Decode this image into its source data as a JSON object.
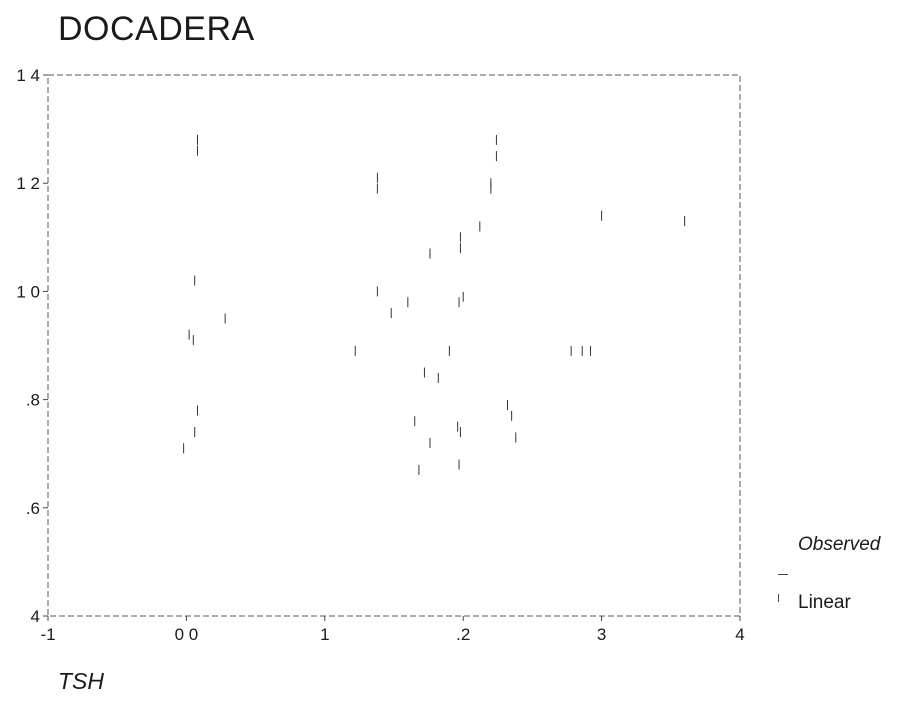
{
  "chart_data": {
    "type": "scatter",
    "title": "DOCADERA",
    "xlabel": "TSH",
    "ylabel": "",
    "xlim": [
      -1,
      4
    ],
    "ylim": [
      0.4,
      1.4
    ],
    "x_ticks": [
      "-1",
      "0 0",
      "1",
      ".2",
      "3",
      "4"
    ],
    "x_tick_values": [
      -1,
      0,
      1,
      2,
      3,
      4
    ],
    "y_ticks": [
      "1 4",
      "1 2",
      "1 0",
      ".8",
      ".6",
      "4"
    ],
    "y_tick_values": [
      1.4,
      1.2,
      1.0,
      0.8,
      0.6,
      0.4
    ],
    "grid": false,
    "legend_position": "right",
    "legend": [
      "Observed",
      "Linear"
    ],
    "series": [
      {
        "name": "Observed",
        "points": [
          [
            0.08,
            1.28
          ],
          [
            0.08,
            1.26
          ],
          [
            0.06,
            1.02
          ],
          [
            0.28,
            0.95
          ],
          [
            0.02,
            0.92
          ],
          [
            0.05,
            0.91
          ],
          [
            0.08,
            0.78
          ],
          [
            0.06,
            0.74
          ],
          [
            -0.02,
            0.71
          ],
          [
            1.22,
            0.89
          ],
          [
            1.38,
            1.21
          ],
          [
            1.38,
            1.19
          ],
          [
            1.38,
            1.0
          ],
          [
            1.48,
            0.96
          ],
          [
            1.6,
            0.98
          ],
          [
            1.72,
            0.85
          ],
          [
            1.82,
            0.84
          ],
          [
            1.76,
            0.72
          ],
          [
            1.65,
            0.76
          ],
          [
            1.68,
            0.67
          ],
          [
            1.76,
            1.07
          ],
          [
            1.98,
            1.1
          ],
          [
            1.98,
            1.08
          ],
          [
            2.0,
            0.99
          ],
          [
            1.97,
            0.98
          ],
          [
            1.9,
            0.89
          ],
          [
            1.96,
            0.75
          ],
          [
            1.98,
            0.74
          ],
          [
            1.97,
            0.68
          ],
          [
            2.12,
            1.12
          ],
          [
            2.24,
            1.28
          ],
          [
            2.24,
            1.25
          ],
          [
            2.2,
            1.2
          ],
          [
            2.2,
            1.19
          ],
          [
            2.32,
            0.79
          ],
          [
            2.35,
            0.77
          ],
          [
            2.38,
            0.73
          ],
          [
            2.78,
            0.89
          ],
          [
            2.86,
            0.89
          ],
          [
            2.92,
            0.89
          ],
          [
            3.0,
            1.14
          ],
          [
            3.6,
            1.13
          ]
        ]
      }
    ]
  }
}
